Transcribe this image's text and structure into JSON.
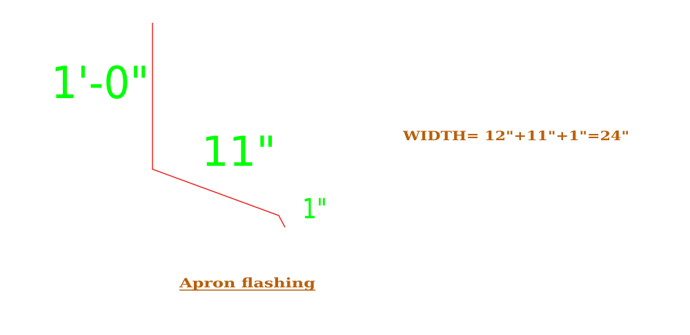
{
  "dimensions": {
    "height_label": "1'-0\"",
    "slope_label": "11\"",
    "lip_label": "1\""
  },
  "formula": "WIDTH=  12\"+11\"+1\"=24\"",
  "caption": "Apron flashing",
  "colors": {
    "profile": "#e8261e",
    "dimension_text": "#00ff00",
    "annotation_text": "#b8600a"
  }
}
